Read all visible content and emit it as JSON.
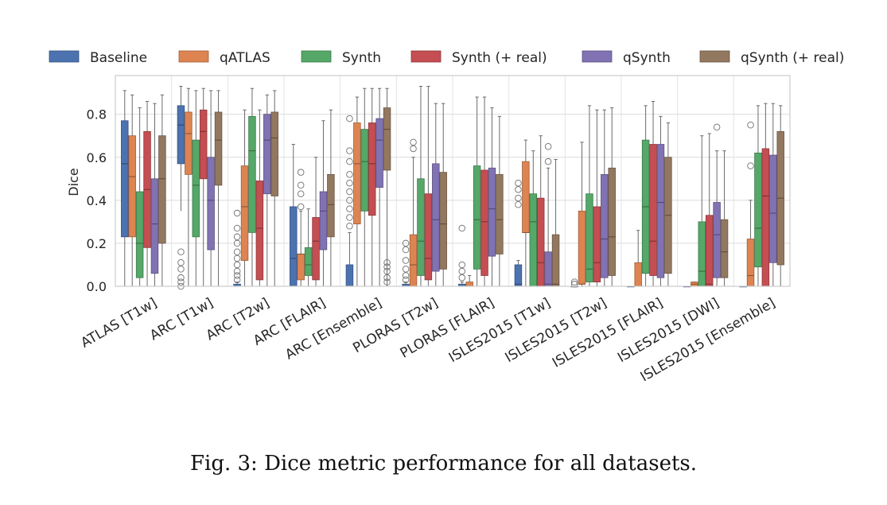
{
  "caption": "Fig. 3: Dice metric performance for all datasets.",
  "chart_data": {
    "type": "box",
    "ylabel": "Dice",
    "xlabel": "",
    "ylim": [
      0.0,
      0.98
    ],
    "yticks": [
      "0.0",
      "0.2",
      "0.4",
      "0.6",
      "0.8"
    ],
    "yticks_values": [
      0.0,
      0.2,
      0.4,
      0.6,
      0.8
    ],
    "grid": true,
    "legend_position": "top",
    "categories": [
      "ATLAS [T1w]",
      "ARC [T1w]",
      "ARC [T2w]",
      "ARC [FLAIR]",
      "ARC [Ensemble]",
      "PLORAS [T2w]",
      "PLORAS [FLAIR]",
      "ISLES2015 [T1w]",
      "ISLES2015 [T2w]",
      "ISLES2015 [FLAIR]",
      "ISLES2015 [DWI]",
      "ISLES2015 [Ensemble]"
    ],
    "series": [
      {
        "name": "Baseline",
        "color": "#4c72b0",
        "boxes": [
          {
            "min": 0.0,
            "q1": 0.23,
            "median": 0.57,
            "q3": 0.77,
            "max": 0.91,
            "outliers": []
          },
          {
            "min": 0.35,
            "q1": 0.57,
            "median": 0.75,
            "q3": 0.84,
            "max": 0.93,
            "outliers": [
              0.0,
              0.02,
              0.04,
              0.08,
              0.11,
              0.16
            ]
          },
          {
            "min": 0.0,
            "q1": 0.0,
            "median": 0.0,
            "q3": 0.01,
            "max": 0.02,
            "outliers": [
              0.03,
              0.05,
              0.07,
              0.1,
              0.13,
              0.16,
              0.2,
              0.23,
              0.27,
              0.34
            ]
          },
          {
            "min": 0.0,
            "q1": 0.0,
            "median": 0.13,
            "q3": 0.37,
            "max": 0.66,
            "outliers": []
          },
          {
            "min": 0.0,
            "q1": 0.0,
            "median": 0.0,
            "q3": 0.1,
            "max": 0.25,
            "outliers": [
              0.28,
              0.32,
              0.36,
              0.4,
              0.44,
              0.48,
              0.52,
              0.58,
              0.63,
              0.78
            ]
          },
          {
            "min": 0.0,
            "q1": 0.0,
            "median": 0.0,
            "q3": 0.01,
            "max": 0.02,
            "outliers": [
              0.03,
              0.05,
              0.08,
              0.12,
              0.17,
              0.2
            ]
          },
          {
            "min": 0.0,
            "q1": 0.0,
            "median": 0.0,
            "q3": 0.01,
            "max": 0.02,
            "outliers": [
              0.04,
              0.07,
              0.1,
              0.27
            ]
          },
          {
            "min": 0.0,
            "q1": 0.0,
            "median": 0.01,
            "q3": 0.1,
            "max": 0.12,
            "outliers": [
              0.38,
              0.41,
              0.45,
              0.48
            ]
          },
          {
            "min": 0.0,
            "q1": 0.0,
            "median": 0.0,
            "q3": 0.0,
            "max": 0.0,
            "outliers": [
              0.01,
              0.02
            ]
          },
          {
            "min": 0.0,
            "q1": 0.0,
            "median": 0.0,
            "q3": 0.0,
            "max": 0.0,
            "outliers": []
          },
          {
            "min": 0.0,
            "q1": 0.0,
            "median": 0.0,
            "q3": 0.0,
            "max": 0.0,
            "outliers": []
          },
          {
            "min": 0.0,
            "q1": 0.0,
            "median": 0.0,
            "q3": 0.0,
            "max": 0.0,
            "outliers": []
          }
        ]
      },
      {
        "name": "qATLAS",
        "color": "#dd8452",
        "boxes": [
          {
            "min": 0.0,
            "q1": 0.23,
            "median": 0.51,
            "q3": 0.7,
            "max": 0.89,
            "outliers": []
          },
          {
            "min": 0.0,
            "q1": 0.52,
            "median": 0.71,
            "q3": 0.81,
            "max": 0.92,
            "outliers": []
          },
          {
            "min": 0.0,
            "q1": 0.12,
            "median": 0.37,
            "q3": 0.56,
            "max": 0.82,
            "outliers": []
          },
          {
            "min": 0.0,
            "q1": 0.03,
            "median": 0.15,
            "q3": 0.15,
            "max": 0.35,
            "outliers": [
              0.37,
              0.43,
              0.47,
              0.53
            ]
          },
          {
            "min": 0.0,
            "q1": 0.29,
            "median": 0.57,
            "q3": 0.76,
            "max": 0.88,
            "outliers": []
          },
          {
            "min": 0.0,
            "q1": 0.0,
            "median": 0.1,
            "q3": 0.24,
            "max": 0.6,
            "outliers": [
              0.64,
              0.67
            ]
          },
          {
            "min": 0.0,
            "q1": 0.0,
            "median": 0.0,
            "q3": 0.02,
            "max": 0.05,
            "outliers": []
          },
          {
            "min": 0.0,
            "q1": 0.25,
            "median": 0.25,
            "q3": 0.58,
            "max": 0.68,
            "outliers": []
          },
          {
            "min": 0.0,
            "q1": 0.01,
            "median": 0.01,
            "q3": 0.35,
            "max": 0.67,
            "outliers": []
          },
          {
            "min": 0.0,
            "q1": 0.0,
            "median": 0.0,
            "q3": 0.11,
            "max": 0.26,
            "outliers": []
          },
          {
            "min": 0.0,
            "q1": 0.0,
            "median": 0.01,
            "q3": 0.02,
            "max": 0.02,
            "outliers": []
          },
          {
            "min": 0.0,
            "q1": 0.0,
            "median": 0.05,
            "q3": 0.22,
            "max": 0.4,
            "outliers": [
              0.56,
              0.75
            ]
          }
        ]
      },
      {
        "name": "Synth",
        "color": "#55a868",
        "boxes": [
          {
            "min": 0.0,
            "q1": 0.04,
            "median": 0.2,
            "q3": 0.44,
            "max": 0.83,
            "outliers": []
          },
          {
            "min": 0.0,
            "q1": 0.23,
            "median": 0.47,
            "q3": 0.68,
            "max": 0.91,
            "outliers": []
          },
          {
            "min": 0.0,
            "q1": 0.25,
            "median": 0.63,
            "q3": 0.79,
            "max": 0.92,
            "outliers": []
          },
          {
            "min": 0.0,
            "q1": 0.05,
            "median": 0.1,
            "q3": 0.18,
            "max": 0.36,
            "outliers": []
          },
          {
            "min": 0.0,
            "q1": 0.35,
            "median": 0.58,
            "q3": 0.73,
            "max": 0.92,
            "outliers": []
          },
          {
            "min": 0.0,
            "q1": 0.05,
            "median": 0.21,
            "q3": 0.5,
            "max": 0.93,
            "outliers": []
          },
          {
            "min": 0.0,
            "q1": 0.08,
            "median": 0.31,
            "q3": 0.56,
            "max": 0.88,
            "outliers": []
          },
          {
            "min": 0.0,
            "q1": 0.0,
            "median": 0.3,
            "q3": 0.43,
            "max": 0.63,
            "outliers": []
          },
          {
            "min": 0.0,
            "q1": 0.02,
            "median": 0.08,
            "q3": 0.43,
            "max": 0.84,
            "outliers": []
          },
          {
            "min": 0.0,
            "q1": 0.06,
            "median": 0.37,
            "q3": 0.68,
            "max": 0.84,
            "outliers": []
          },
          {
            "min": 0.0,
            "q1": 0.0,
            "median": 0.07,
            "q3": 0.3,
            "max": 0.7,
            "outliers": []
          },
          {
            "min": 0.0,
            "q1": 0.09,
            "median": 0.27,
            "q3": 0.62,
            "max": 0.84,
            "outliers": []
          }
        ]
      },
      {
        "name": "Synth (+ real)",
        "color": "#c44e52",
        "boxes": [
          {
            "min": 0.0,
            "q1": 0.18,
            "median": 0.45,
            "q3": 0.72,
            "max": 0.86,
            "outliers": []
          },
          {
            "min": 0.0,
            "q1": 0.5,
            "median": 0.72,
            "q3": 0.82,
            "max": 0.92,
            "outliers": []
          },
          {
            "min": 0.0,
            "q1": 0.03,
            "median": 0.27,
            "q3": 0.49,
            "max": 0.82,
            "outliers": []
          },
          {
            "min": 0.0,
            "q1": 0.03,
            "median": 0.21,
            "q3": 0.32,
            "max": 0.6,
            "outliers": []
          },
          {
            "min": 0.0,
            "q1": 0.33,
            "median": 0.57,
            "q3": 0.76,
            "max": 0.92,
            "outliers": []
          },
          {
            "min": 0.0,
            "q1": 0.03,
            "median": 0.13,
            "q3": 0.43,
            "max": 0.93,
            "outliers": []
          },
          {
            "min": 0.0,
            "q1": 0.05,
            "median": 0.3,
            "q3": 0.54,
            "max": 0.88,
            "outliers": []
          },
          {
            "min": 0.0,
            "q1": 0.0,
            "median": 0.11,
            "q3": 0.41,
            "max": 0.7,
            "outliers": []
          },
          {
            "min": 0.0,
            "q1": 0.02,
            "median": 0.11,
            "q3": 0.37,
            "max": 0.82,
            "outliers": []
          },
          {
            "min": 0.0,
            "q1": 0.05,
            "median": 0.21,
            "q3": 0.66,
            "max": 0.86,
            "outliers": []
          },
          {
            "min": 0.0,
            "q1": 0.0,
            "median": 0.01,
            "q3": 0.33,
            "max": 0.71,
            "outliers": []
          },
          {
            "min": 0.0,
            "q1": 0.0,
            "median": 0.42,
            "q3": 0.64,
            "max": 0.85,
            "outliers": []
          }
        ]
      },
      {
        "name": "qSynth",
        "color": "#8172b3",
        "boxes": [
          {
            "min": 0.0,
            "q1": 0.06,
            "median": 0.29,
            "q3": 0.5,
            "max": 0.85,
            "outliers": []
          },
          {
            "min": 0.0,
            "q1": 0.17,
            "median": 0.4,
            "q3": 0.6,
            "max": 0.91,
            "outliers": []
          },
          {
            "min": 0.0,
            "q1": 0.43,
            "median": 0.68,
            "q3": 0.8,
            "max": 0.89,
            "outliers": []
          },
          {
            "min": 0.0,
            "q1": 0.17,
            "median": 0.35,
            "q3": 0.44,
            "max": 0.77,
            "outliers": []
          },
          {
            "min": 0.0,
            "q1": 0.46,
            "median": 0.68,
            "q3": 0.78,
            "max": 0.92,
            "outliers": []
          },
          {
            "min": 0.0,
            "q1": 0.07,
            "median": 0.31,
            "q3": 0.57,
            "max": 0.85,
            "outliers": []
          },
          {
            "min": 0.0,
            "q1": 0.14,
            "median": 0.36,
            "q3": 0.55,
            "max": 0.83,
            "outliers": []
          },
          {
            "min": 0.0,
            "q1": 0.0,
            "median": 0.01,
            "q3": 0.16,
            "max": 0.55,
            "outliers": [
              0.58,
              0.65
            ]
          },
          {
            "min": 0.0,
            "q1": 0.04,
            "median": 0.22,
            "q3": 0.52,
            "max": 0.82,
            "outliers": []
          },
          {
            "min": 0.0,
            "q1": 0.04,
            "median": 0.39,
            "q3": 0.66,
            "max": 0.79,
            "outliers": []
          },
          {
            "min": 0.0,
            "q1": 0.04,
            "median": 0.24,
            "q3": 0.39,
            "max": 0.63,
            "outliers": [
              0.74
            ]
          },
          {
            "min": 0.0,
            "q1": 0.11,
            "median": 0.34,
            "q3": 0.61,
            "max": 0.85,
            "outliers": []
          }
        ]
      },
      {
        "name": "qSynth (+ real)",
        "color": "#937860",
        "boxes": [
          {
            "min": 0.0,
            "q1": 0.2,
            "median": 0.5,
            "q3": 0.7,
            "max": 0.89,
            "outliers": []
          },
          {
            "min": 0.0,
            "q1": 0.47,
            "median": 0.68,
            "q3": 0.81,
            "max": 0.91,
            "outliers": []
          },
          {
            "min": 0.0,
            "q1": 0.42,
            "median": 0.69,
            "q3": 0.81,
            "max": 0.91,
            "outliers": []
          },
          {
            "min": 0.0,
            "q1": 0.23,
            "median": 0.38,
            "q3": 0.52,
            "max": 0.82,
            "outliers": []
          },
          {
            "min": 0.0,
            "q1": 0.54,
            "median": 0.73,
            "q3": 0.83,
            "max": 0.92,
            "outliers": [
              0.02,
              0.04,
              0.07,
              0.09,
              0.11
            ]
          },
          {
            "min": 0.0,
            "q1": 0.08,
            "median": 0.29,
            "q3": 0.53,
            "max": 0.85,
            "outliers": []
          },
          {
            "min": 0.0,
            "q1": 0.15,
            "median": 0.31,
            "q3": 0.52,
            "max": 0.79,
            "outliers": []
          },
          {
            "min": 0.0,
            "q1": 0.0,
            "median": 0.01,
            "q3": 0.24,
            "max": 0.59,
            "outliers": []
          },
          {
            "min": 0.0,
            "q1": 0.05,
            "median": 0.23,
            "q3": 0.55,
            "max": 0.83,
            "outliers": []
          },
          {
            "min": 0.0,
            "q1": 0.06,
            "median": 0.33,
            "q3": 0.6,
            "max": 0.76,
            "outliers": []
          },
          {
            "min": 0.0,
            "q1": 0.04,
            "median": 0.16,
            "q3": 0.31,
            "max": 0.63,
            "outliers": []
          },
          {
            "min": 0.0,
            "q1": 0.1,
            "median": 0.41,
            "q3": 0.72,
            "max": 0.84,
            "outliers": []
          }
        ]
      }
    ]
  }
}
